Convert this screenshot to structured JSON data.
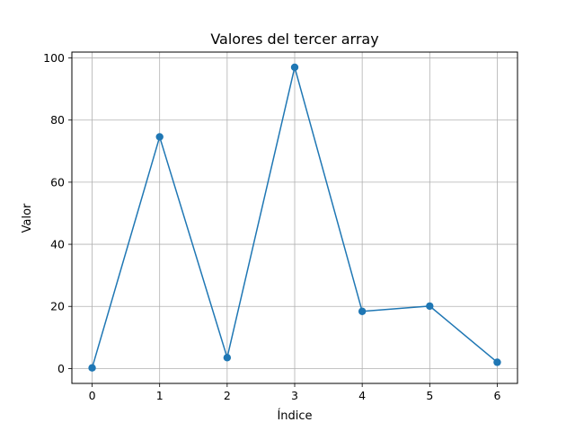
{
  "chart_data": {
    "type": "line",
    "title": "Valores del tercer array",
    "xlabel": "Índice",
    "ylabel": "Valor",
    "x": [
      0,
      1,
      2,
      3,
      4,
      5,
      6
    ],
    "series": [
      {
        "values": [
          0.2,
          74.6,
          3.5,
          97.0,
          18.4,
          20.1,
          2.0
        ],
        "color": "#1f77b4",
        "marker": "circle"
      }
    ],
    "xticks": [
      0,
      1,
      2,
      3,
      4,
      5,
      6
    ],
    "yticks": [
      0,
      20,
      40,
      60,
      80,
      100
    ],
    "xlim": [
      -0.3,
      6.3
    ],
    "ylim": [
      -4.8,
      101.9
    ],
    "grid": true
  }
}
